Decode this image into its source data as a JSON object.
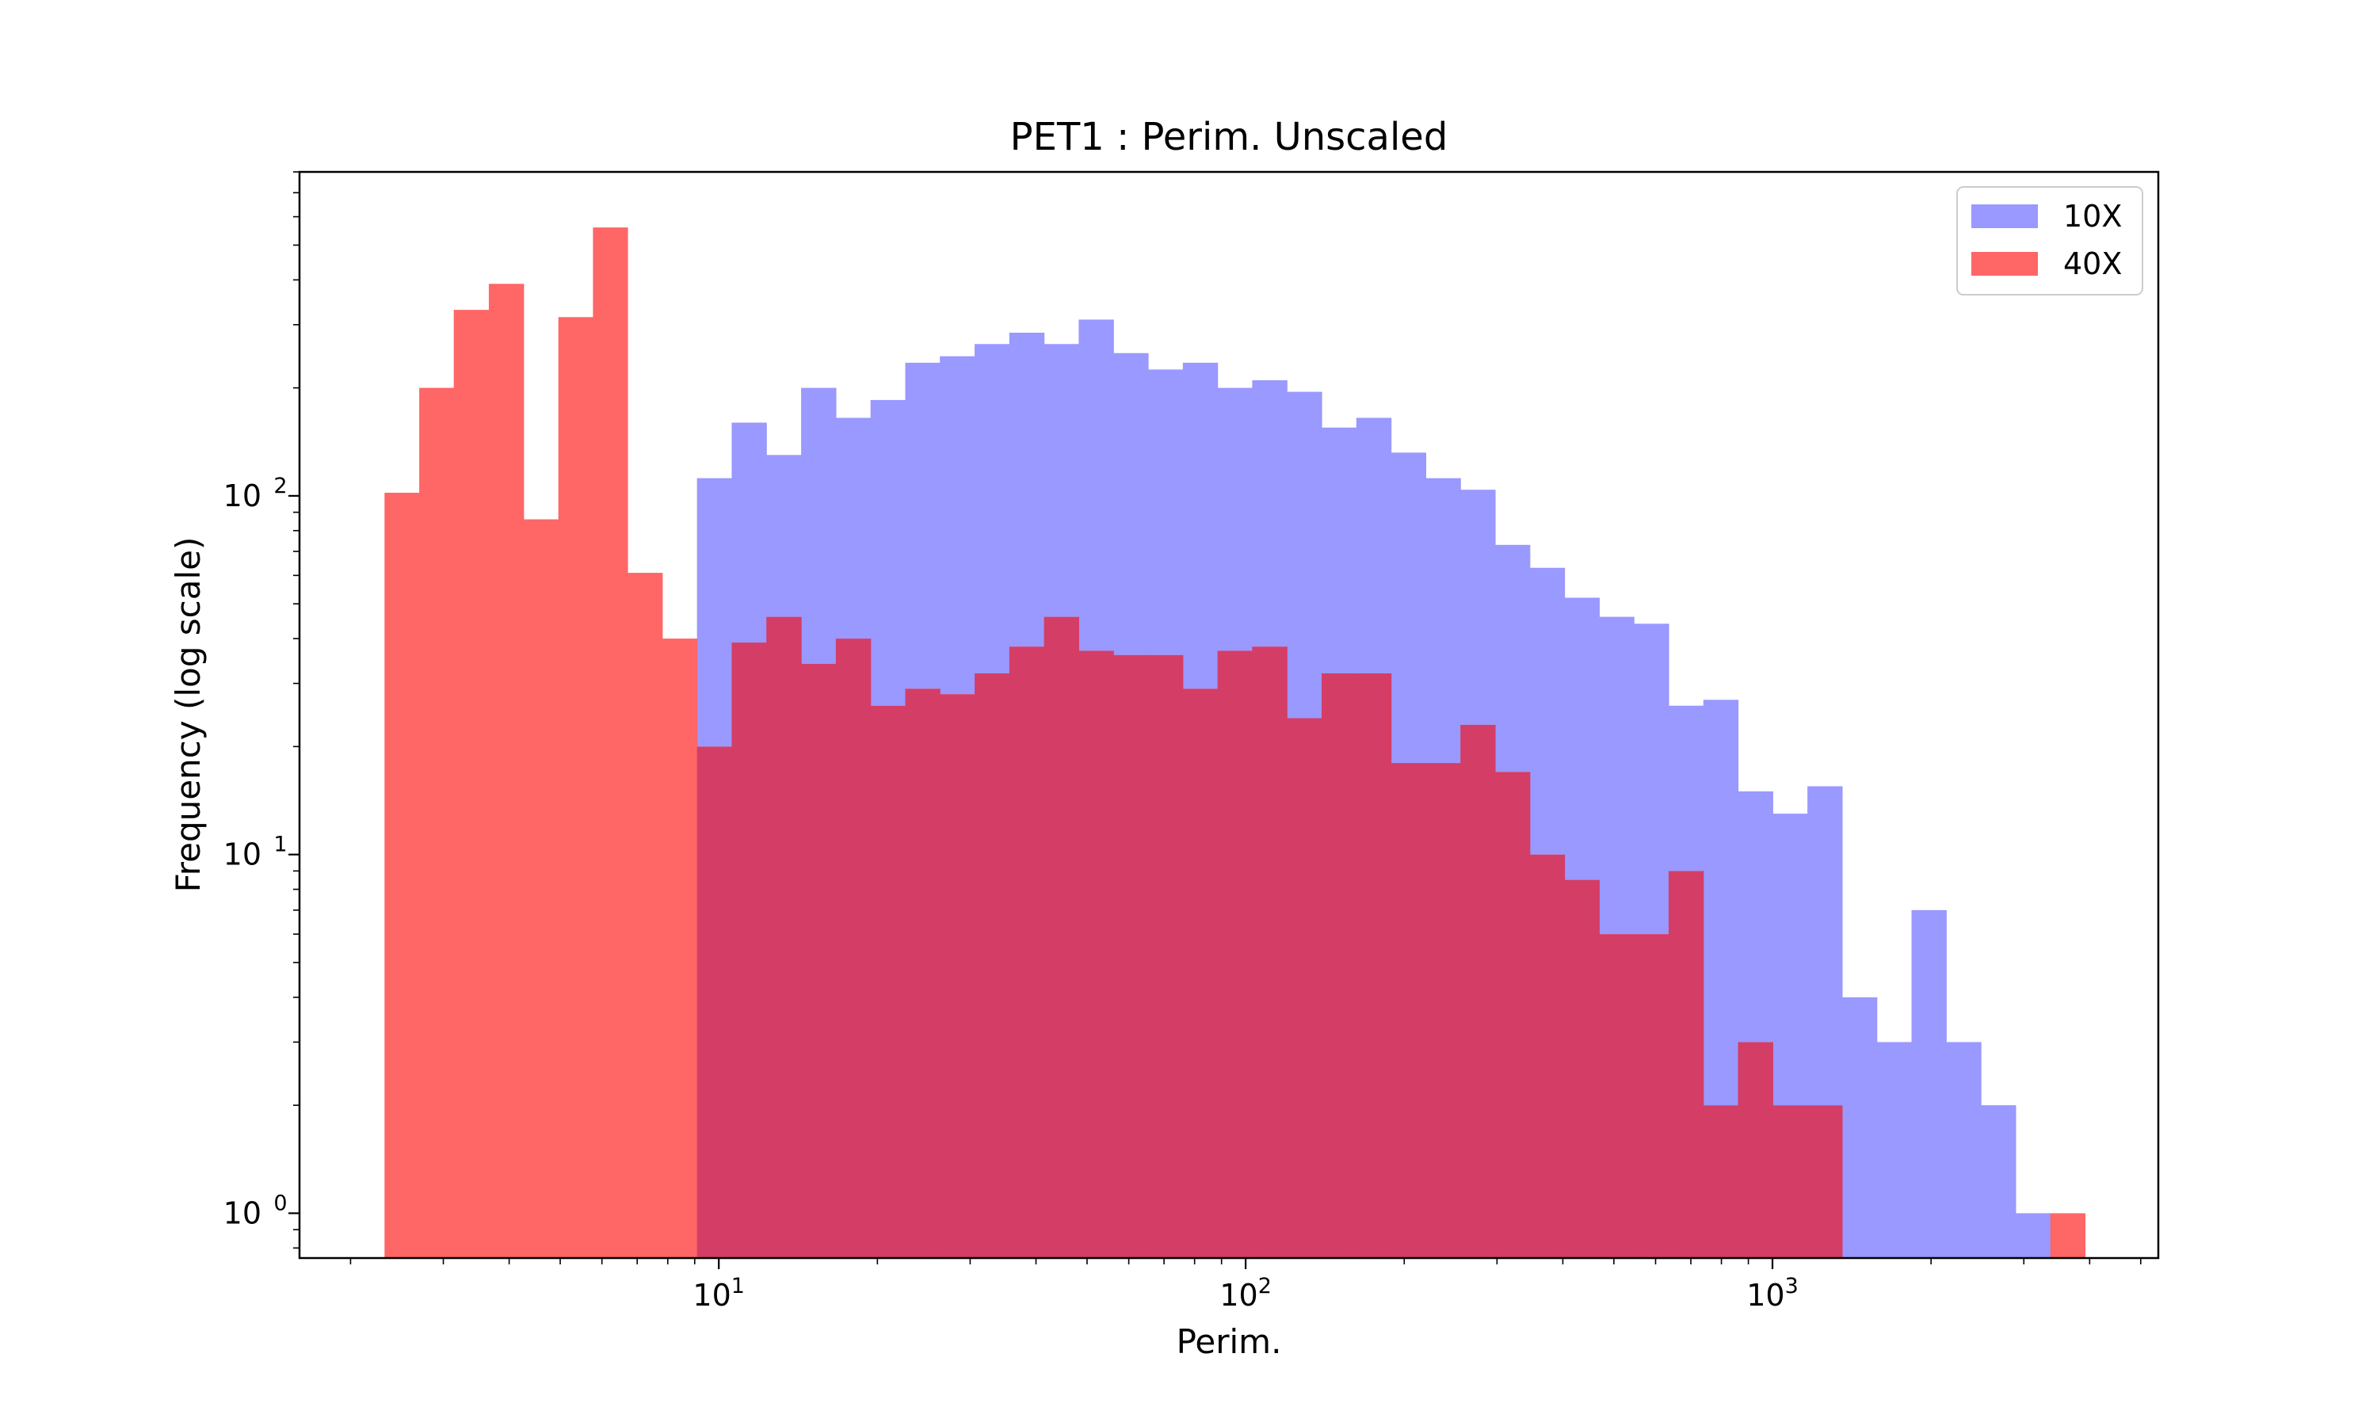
{
  "chart_data": {
    "type": "histogram",
    "title": "PET1 : Perim. Unscaled",
    "xlabel": "Perim.",
    "ylabel": "Frequency (log scale)",
    "x_scale": "log",
    "y_scale": "log",
    "xlim": [
      1.6,
      5400
    ],
    "ylim": [
      0.75,
      800
    ],
    "x_ticks": [
      {
        "value": 10,
        "base": "10",
        "exp": "1"
      },
      {
        "value": 100,
        "base": "10",
        "exp": "2"
      },
      {
        "value": 1000,
        "base": "10",
        "exp": "3"
      }
    ],
    "y_ticks": [
      {
        "value": 1,
        "base": "10",
        "exp": "0"
      },
      {
        "value": 10,
        "base": "10",
        "exp": "1"
      },
      {
        "value": 100,
        "base": "10",
        "exp": "2"
      }
    ],
    "bin_edges": [
      2.32,
      2.7,
      3.14,
      3.66,
      4.26,
      4.96,
      5.77,
      6.71,
      7.81,
      9.09,
      10.58,
      12.31,
      14.33,
      16.68,
      19.41,
      22.59,
      26.28,
      30.59,
      35.6,
      41.43,
      48.21,
      56.11,
      65.3,
      75.99,
      88.44,
      102.92,
      119.78,
      139.39,
      162.22,
      188.78,
      219.7,
      255.68,
      297.55,
      346.28,
      402.98,
      468.98,
      545.78,
      635.16,
      739.18,
      860.23,
      1001.1,
      1165.05,
      1355.84,
      1577.87,
      1836.27,
      2137.0,
      2486.95,
      2894.22,
      3368.2,
      3919.8
    ],
    "series": [
      {
        "name": "10X",
        "color": "#9999ff",
        "values": [
          0,
          0,
          0,
          0,
          0,
          0,
          0,
          0,
          0,
          112,
          160,
          130,
          200,
          165,
          185,
          235,
          245,
          265,
          285,
          265,
          310,
          250,
          225,
          235,
          200,
          210,
          195,
          155,
          165,
          132,
          112,
          104,
          73,
          63,
          52,
          46,
          44,
          26,
          27,
          15,
          13,
          15.5,
          4,
          3,
          7,
          3,
          2,
          1,
          0
        ]
      },
      {
        "name": "40X",
        "color": "#ff6666",
        "values": [
          102,
          200,
          330,
          390,
          86,
          315,
          560,
          61,
          40,
          20,
          39,
          46,
          34,
          40,
          26,
          29,
          28,
          32,
          38,
          46,
          37,
          36,
          36,
          29,
          37,
          38,
          24,
          32,
          32,
          18,
          18,
          23,
          17,
          10,
          8.5,
          6,
          6,
          9,
          2,
          3,
          2,
          2,
          0,
          0,
          0,
          0,
          0,
          0,
          1
        ]
      }
    ],
    "overlap_color": "#d43d66",
    "legend": {
      "placement": "top-right"
    }
  }
}
